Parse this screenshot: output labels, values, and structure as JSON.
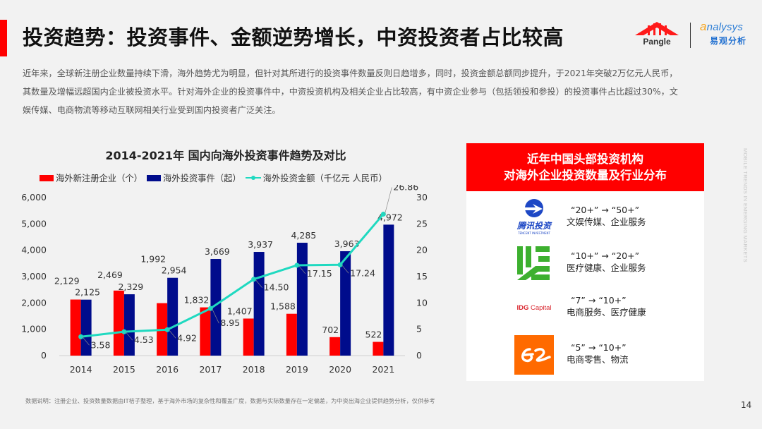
{
  "header": {
    "title": "投资趋势：投资事件、金额逆势增长，中资投资者占比较高",
    "logos": {
      "pangle": "Pangle",
      "analysys_en_first": "a",
      "analysys_en_rest": "nalysys",
      "analysys_cn": "易观分析"
    }
  },
  "intro": {
    "text": "近年来，全球新注册企业数量持续下滑，海外趋势尤为明显，但针对其所进行的投资事件数量反则日趋增多，同时，投资金额总额同步提升，于2021年突破2万亿元人民币，其数量及增幅远超国内企业被投资水平。针对海外企业的投资事件中，中资投资机构及相关企业占比较高，有中资企业参与（包括领投和参投）的投资事件占比超过30%，文娱传媒、电商物流等移动互联网相关行业受到国内投资者广泛关注。"
  },
  "chart_data": {
    "type": "bar",
    "title": "2014-2021年 国内向海外投资事件趋势及对比",
    "categories": [
      "2014",
      "2015",
      "2016",
      "2017",
      "2018",
      "2019",
      "2020",
      "2021"
    ],
    "series": [
      {
        "name": "海外新注册企业（个）",
        "type": "bar",
        "axis": "left",
        "color": "#ff0000",
        "values": [
          2129,
          2469,
          1992,
          1832,
          1407,
          1588,
          702,
          522
        ],
        "labels": [
          "2,129",
          "2,469",
          "1,992",
          "1,832",
          "1,407",
          "1,588",
          "702",
          "522"
        ]
      },
      {
        "name": "海外投资事件（起）",
        "type": "bar",
        "axis": "left",
        "color": "#000c8c",
        "values": [
          2125,
          2329,
          2954,
          3669,
          3937,
          4285,
          3963,
          4972
        ],
        "labels": [
          "2,125",
          "2,329",
          "2,954",
          "3,669",
          "3,937",
          "4,285",
          "3,963",
          "4,972"
        ]
      },
      {
        "name": "海外投资金额（千亿元 人民币）",
        "type": "line",
        "axis": "right",
        "color": "#1fd9c0",
        "values": [
          3.58,
          4.53,
          4.92,
          8.95,
          14.5,
          17.15,
          17.24,
          26.86
        ],
        "labels": [
          "3.58",
          "4.53",
          "4.92",
          "8.95",
          "14.50",
          "17.15",
          "17.24",
          "26.86"
        ]
      }
    ],
    "y_left": {
      "min": 0,
      "max": 6000,
      "ticks": [
        0,
        1000,
        2000,
        3000,
        4000,
        5000,
        6000
      ],
      "tick_labels": [
        "0",
        "1,000",
        "2,000",
        "3,000",
        "4,000",
        "5,000",
        "6,000"
      ]
    },
    "y_right": {
      "min": 0,
      "max": 30,
      "ticks": [
        0,
        5,
        10,
        15,
        20,
        25,
        30
      ],
      "tick_labels": [
        "0",
        "5",
        "10",
        "15",
        "20",
        "25",
        "30"
      ]
    },
    "grid": false,
    "legend_position": "top"
  },
  "panel": {
    "title_line1": "近年中国头部投资机构",
    "title_line2": "对海外企业投资数量及行业分布",
    "investors": [
      {
        "logo": "tencent-investment-logo",
        "logo_cn": "腾讯投资",
        "logo_en": "TENCENT INVESTMENT",
        "change": "“20+” → “50+”",
        "sectors": "文娱传媒、企业服务"
      },
      {
        "logo": "green-stripes-logo",
        "change": "“10+” → “20+”",
        "sectors": "医疗健康、企业服务"
      },
      {
        "logo": "idg-capital-logo",
        "logo_text_a": "IDG",
        "logo_text_b": " Capital",
        "change": "“7” → “10+”",
        "sectors": "电商服务、医疗健康"
      },
      {
        "logo": "alibaba-logo",
        "change": "“5” → “10+”",
        "sectors": "电商零售、物流"
      }
    ]
  },
  "footer": {
    "note": "数据说明：注册企业、投资数量数据由IT桔子整理，基于海外市场的复杂性和覆盖广度，数据与实际数量存在一定偏差，为中资出海企业提供趋势分析，仅供参考",
    "page_number": "14",
    "side_text": "MOBILE TRENDS IN EMERGING MARKETS"
  },
  "colors": {
    "accent": "#ff0000",
    "navy": "#000c8c",
    "teal": "#1fd9c0"
  }
}
